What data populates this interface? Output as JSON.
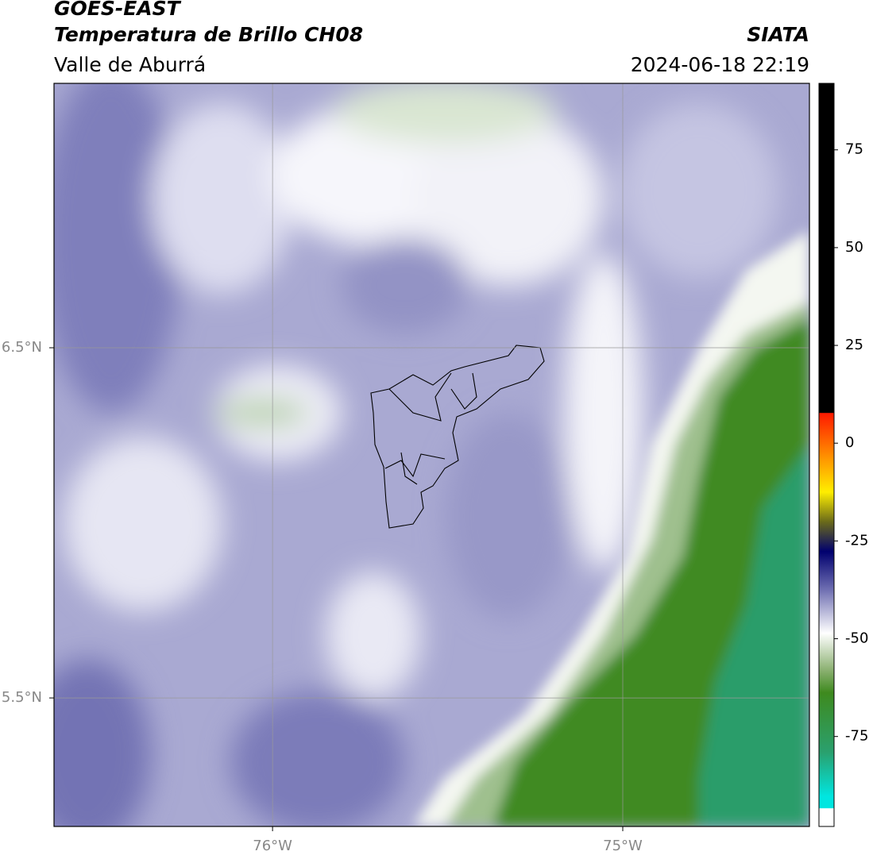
{
  "header": {
    "title": "GOES-EAST",
    "subtitle": "Temperatura de Brillo CH08",
    "source": "SIATA",
    "region": "Valle de Aburrá",
    "timestamp": "2024-06-18 22:19"
  },
  "map": {
    "type": "map",
    "xlim": [
      -76.624,
      -74.467
    ],
    "ylim": [
      5.133,
      7.255
    ],
    "xticks": [
      {
        "value": -76,
        "label": "76°W"
      },
      {
        "value": -75,
        "label": "75°W"
      }
    ],
    "yticks": [
      {
        "value": 6.5,
        "label": "6.5°N"
      },
      {
        "value": 5.5,
        "label": "5.5°N"
      }
    ],
    "grid": true
  },
  "colorbar": {
    "ylim": [
      -98,
      92
    ],
    "yticks": [
      75,
      50,
      25,
      0,
      -25,
      -50,
      -75
    ]
  }
}
